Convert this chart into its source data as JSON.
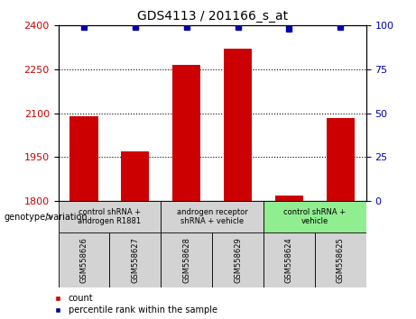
{
  "title": "GDS4113 / 201166_s_at",
  "samples": [
    "GSM558626",
    "GSM558627",
    "GSM558628",
    "GSM558629",
    "GSM558624",
    "GSM558625"
  ],
  "counts": [
    2090,
    1970,
    2265,
    2320,
    1820,
    2085
  ],
  "percentiles": [
    99,
    99,
    99,
    99,
    98,
    99
  ],
  "ylim_left": [
    1800,
    2400
  ],
  "ylim_right": [
    0,
    100
  ],
  "yticks_left": [
    1800,
    1950,
    2100,
    2250,
    2400
  ],
  "yticks_right": [
    0,
    25,
    50,
    75,
    100
  ],
  "bar_color": "#cc0000",
  "dot_color": "#0000aa",
  "bar_width": 0.55,
  "groups": [
    {
      "label": "control shRNA +\nandrogen R1881",
      "indices": [
        0,
        1
      ],
      "color": "#d3d3d3"
    },
    {
      "label": "androgen receptor\nshRNA + vehicle",
      "indices": [
        2,
        3
      ],
      "color": "#d3d3d3"
    },
    {
      "label": "control shRNA +\nvehicle",
      "indices": [
        4,
        5
      ],
      "color": "#90ee90"
    }
  ],
  "legend_count_label": "count",
  "legend_percentile_label": "percentile rank within the sample",
  "genotype_label": "genotype/variation",
  "background_color": "#ffffff",
  "tick_label_color_left": "#cc0000",
  "tick_label_color_right": "#0000aa",
  "sample_box_color": "#d3d3d3",
  "figure_width": 4.61,
  "figure_height": 3.54,
  "dpi": 100
}
